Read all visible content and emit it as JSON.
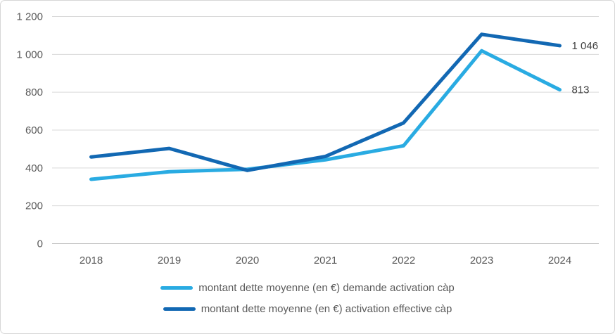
{
  "chart_data": {
    "type": "line",
    "title": "",
    "xlabel": "",
    "ylabel": "",
    "categories": [
      "2018",
      "2019",
      "2020",
      "2021",
      "2022",
      "2023",
      "2024"
    ],
    "series": [
      {
        "name": "montant dette moyenne (en €) demande activation càp",
        "color": "#29ABE2",
        "values": [
          340,
          380,
          393,
          443,
          517,
          1019,
          813
        ]
      },
      {
        "name": "montant  dette moyenne (en €)  activation effective càp",
        "color": "#1268B3",
        "values": [
          458,
          503,
          387,
          461,
          638,
          1106,
          1046
        ]
      }
    ],
    "ylim": [
      0,
      1200
    ],
    "yticks": [
      {
        "value": 1200,
        "label": "1 200"
      },
      {
        "value": 1000,
        "label": "1 000"
      },
      {
        "value": 800,
        "label": "800"
      },
      {
        "value": 600,
        "label": "600"
      },
      {
        "value": 400,
        "label": "400"
      },
      {
        "value": 200,
        "label": "200"
      },
      {
        "value": 0,
        "label": "0"
      }
    ],
    "data_labels": [
      {
        "text": "1 046",
        "series_index": 1,
        "point_index": 6
      },
      {
        "text": "813",
        "series_index": 0,
        "point_index": 6
      }
    ],
    "grid": true,
    "legend_position": "bottom",
    "line_width": 5,
    "colors": {
      "grid": "#D9D9D9",
      "axis": "#BFBFBF",
      "tick_text": "#595959",
      "data_label_text": "#404040",
      "legend_text": "#595959",
      "border": "#D7D7D7",
      "background": "#FFFFFF"
    }
  }
}
